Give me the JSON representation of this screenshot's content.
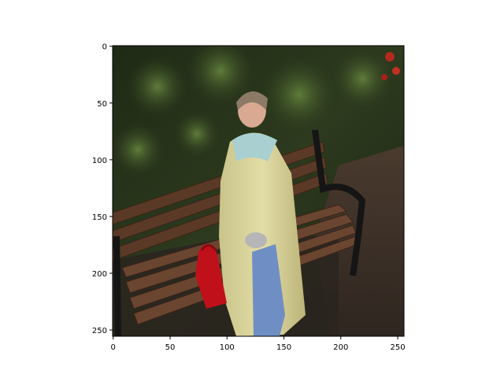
{
  "figure": {
    "background": "#ffffff",
    "axis_color": "#000000",
    "image_description_icon": "photo-park-bench-woman"
  },
  "x_axis": {
    "ticks": [
      {
        "value": 0,
        "label": "0"
      },
      {
        "value": 50,
        "label": "50"
      },
      {
        "value": 100,
        "label": "100"
      },
      {
        "value": 150,
        "label": "150"
      },
      {
        "value": 200,
        "label": "200"
      },
      {
        "value": 250,
        "label": "250"
      }
    ],
    "range": [
      -0.5,
      255.5
    ]
  },
  "y_axis": {
    "ticks": [
      {
        "value": 0,
        "label": "0"
      },
      {
        "value": 50,
        "label": "50"
      },
      {
        "value": 100,
        "label": "100"
      },
      {
        "value": 150,
        "label": "150"
      },
      {
        "value": 200,
        "label": "200"
      },
      {
        "value": 250,
        "label": "250"
      }
    ],
    "range": [
      -0.5,
      255.5
    ],
    "inverted": true
  }
}
